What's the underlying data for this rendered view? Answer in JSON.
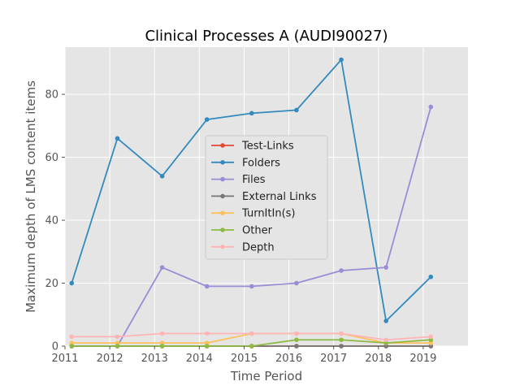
{
  "chart_data": {
    "type": "line",
    "title": "Clinical Processes A (AUDI90027)",
    "xlabel": "Time Period",
    "ylabel": "Maximum depth of LMS content items",
    "xlim": [
      2011,
      2020
    ],
    "ylim": [
      0,
      95
    ],
    "x_ticks": [
      "2011",
      "2012",
      "2013",
      "2014",
      "2015",
      "2016",
      "2017",
      "2018",
      "2019"
    ],
    "y_ticks": [
      "0",
      "20",
      "40",
      "60",
      "80"
    ],
    "grid": true,
    "legend_position": "center",
    "x": [
      2011.15,
      2012.17,
      2013.17,
      2014.17,
      2015.17,
      2016.17,
      2017.17,
      2018.17,
      2019.17
    ],
    "series": [
      {
        "name": "Test-Links",
        "color": "#e24a33",
        "values": [
          0,
          0,
          0,
          0,
          0,
          0,
          0,
          0,
          0
        ]
      },
      {
        "name": "Folders",
        "color": "#348abd",
        "values": [
          20,
          66,
          54,
          72,
          74,
          75,
          91,
          8,
          22
        ]
      },
      {
        "name": "Files",
        "color": "#988ed5",
        "values": [
          0,
          0,
          25,
          19,
          19,
          20,
          24,
          25,
          76
        ]
      },
      {
        "name": "External Links",
        "color": "#777777",
        "values": [
          0,
          0,
          0,
          0,
          0,
          0,
          0,
          0,
          0
        ]
      },
      {
        "name": "TurnItIn(s)",
        "color": "#fbc15e",
        "values": [
          1,
          1,
          1,
          1,
          4,
          4,
          4,
          1,
          1
        ]
      },
      {
        "name": "Other",
        "color": "#8eba42",
        "values": [
          0,
          0,
          0,
          0,
          0,
          2,
          2,
          1,
          2
        ]
      },
      {
        "name": "Depth",
        "color": "#ffb5b8",
        "values": [
          3,
          3,
          4,
          4,
          4,
          4,
          4,
          2,
          3
        ]
      }
    ]
  }
}
